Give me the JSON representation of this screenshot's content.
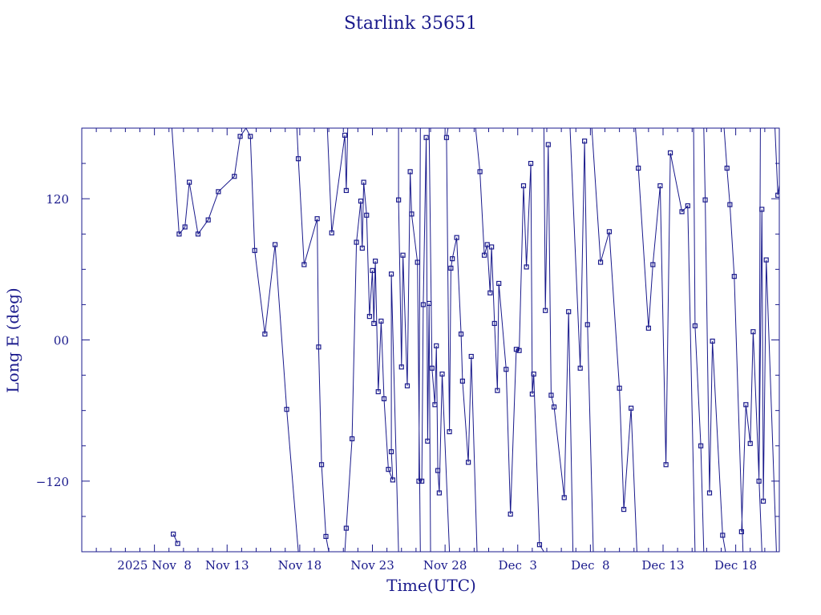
{
  "chart_data": {
    "type": "scatter",
    "title": "Starlink 35651",
    "xlabel": "Time(UTC)",
    "ylabel": "Long E (deg)",
    "x_start": "2025-11-02",
    "xlim_days": [
      0,
      48
    ],
    "ylim": [
      -180,
      180
    ],
    "y_ticks": [
      -120,
      0,
      120
    ],
    "y_tick_labels": [
      "−120",
      "00",
      "120"
    ],
    "x_ticks": [
      {
        "day": 5,
        "label": "2025 Nov  8"
      },
      {
        "day": 10,
        "label": "Nov 13"
      },
      {
        "day": 15,
        "label": "Nov 18"
      },
      {
        "day": 20,
        "label": "Nov 23"
      },
      {
        "day": 25,
        "label": "Nov 28"
      },
      {
        "day": 30,
        "label": "Dec  3"
      },
      {
        "day": 35,
        "label": "Dec  8"
      },
      {
        "day": 40,
        "label": "Dec 13"
      },
      {
        "day": 45,
        "label": "Dec 18"
      }
    ],
    "color": "#1a1a8c",
    "grid": false,
    "points": [
      [
        6.3,
        -165
      ],
      [
        6.6,
        -173
      ],
      [
        6.2,
        180
      ],
      [
        6.7,
        90
      ],
      [
        7.1,
        96
      ],
      [
        7.4,
        134
      ],
      [
        8.0,
        90
      ],
      [
        8.7,
        102
      ],
      [
        9.4,
        126
      ],
      [
        10.5,
        139
      ],
      [
        10.9,
        173
      ],
      [
        11.3,
        180
      ],
      [
        11.6,
        173
      ],
      [
        11.9,
        76
      ],
      [
        12.6,
        5
      ],
      [
        13.3,
        81
      ],
      [
        14.1,
        -59
      ],
      [
        14.9,
        -180
      ],
      [
        14.8,
        180
      ],
      [
        14.9,
        154
      ],
      [
        15.3,
        64
      ],
      [
        16.2,
        103
      ],
      [
        16.3,
        -6
      ],
      [
        16.5,
        -106
      ],
      [
        16.8,
        -167
      ],
      [
        17.0,
        -180
      ],
      [
        16.9,
        180
      ],
      [
        17.2,
        91
      ],
      [
        18.1,
        174
      ],
      [
        18.2,
        127
      ],
      [
        18.3,
        180
      ],
      [
        18.1,
        -180
      ],
      [
        18.2,
        -160
      ],
      [
        18.6,
        -84
      ],
      [
        18.9,
        83
      ],
      [
        19.2,
        118
      ],
      [
        19.3,
        78
      ],
      [
        19.4,
        134
      ],
      [
        19.6,
        106
      ],
      [
        19.8,
        20
      ],
      [
        20.0,
        59
      ],
      [
        20.1,
        14
      ],
      [
        20.2,
        67
      ],
      [
        20.4,
        -44
      ],
      [
        20.6,
        16
      ],
      [
        20.8,
        -50
      ],
      [
        21.1,
        -110
      ],
      [
        21.4,
        -119
      ],
      [
        21.3,
        -95
      ],
      [
        21.3,
        56
      ],
      [
        21.8,
        -180
      ],
      [
        21.8,
        180
      ],
      [
        21.8,
        119
      ],
      [
        22.0,
        -23
      ],
      [
        22.1,
        72
      ],
      [
        22.4,
        -39
      ],
      [
        22.6,
        143
      ],
      [
        22.7,
        107
      ],
      [
        23.1,
        66
      ],
      [
        23.3,
        -180
      ],
      [
        23.3,
        180
      ],
      [
        23.2,
        -120
      ],
      [
        23.4,
        -120
      ],
      [
        23.5,
        30
      ],
      [
        23.7,
        172
      ],
      [
        23.8,
        -86
      ],
      [
        23.9,
        31
      ],
      [
        24.0,
        -180
      ],
      [
        23.9,
        180
      ],
      [
        24.1,
        -24
      ],
      [
        24.3,
        -55
      ],
      [
        24.4,
        -5
      ],
      [
        24.5,
        -111
      ],
      [
        24.6,
        -130
      ],
      [
        24.8,
        -29
      ],
      [
        25.3,
        -180
      ],
      [
        25.2,
        180
      ],
      [
        25.1,
        172
      ],
      [
        25.3,
        -78
      ],
      [
        25.4,
        61
      ],
      [
        25.5,
        69
      ],
      [
        25.8,
        87
      ],
      [
        26.1,
        5
      ],
      [
        26.2,
        -35
      ],
      [
        26.6,
        -104
      ],
      [
        26.8,
        -14
      ],
      [
        27.2,
        -180
      ],
      [
        27.1,
        180
      ],
      [
        27.4,
        143
      ],
      [
        27.7,
        72
      ],
      [
        27.9,
        81
      ],
      [
        28.1,
        40
      ],
      [
        28.2,
        79
      ],
      [
        28.4,
        14
      ],
      [
        28.6,
        -43
      ],
      [
        28.7,
        48
      ],
      [
        29.2,
        -25
      ],
      [
        29.5,
        -148
      ],
      [
        29.9,
        -8
      ],
      [
        30.1,
        -9
      ],
      [
        30.4,
        131
      ],
      [
        30.6,
        62
      ],
      [
        30.9,
        150
      ],
      [
        31.0,
        -46
      ],
      [
        31.1,
        -29
      ],
      [
        31.5,
        -174
      ],
      [
        31.8,
        -180
      ],
      [
        31.8,
        180
      ],
      [
        31.9,
        25
      ],
      [
        32.1,
        166
      ],
      [
        32.3,
        -47
      ],
      [
        32.5,
        -57
      ],
      [
        33.2,
        -134
      ],
      [
        33.5,
        24
      ],
      [
        33.8,
        -180
      ],
      [
        33.6,
        180
      ],
      [
        34.3,
        -24
      ],
      [
        34.6,
        169
      ],
      [
        34.8,
        13
      ],
      [
        35.2,
        -180
      ],
      [
        35.1,
        180
      ],
      [
        35.7,
        66
      ],
      [
        36.3,
        92
      ],
      [
        37.0,
        -41
      ],
      [
        37.3,
        -144
      ],
      [
        37.8,
        -58
      ],
      [
        38.2,
        -180
      ],
      [
        38.1,
        180
      ],
      [
        38.3,
        146
      ],
      [
        39.0,
        10
      ],
      [
        39.3,
        64
      ],
      [
        39.8,
        131
      ],
      [
        40.2,
        -106
      ],
      [
        40.5,
        159
      ],
      [
        41.3,
        109
      ],
      [
        41.7,
        114
      ],
      [
        42.2,
        -180
      ],
      [
        42.1,
        180
      ],
      [
        42.2,
        12
      ],
      [
        42.6,
        -90
      ],
      [
        42.8,
        -180
      ],
      [
        42.8,
        180
      ],
      [
        42.9,
        119
      ],
      [
        43.2,
        -130
      ],
      [
        43.4,
        -1
      ],
      [
        44.1,
        -166
      ],
      [
        44.3,
        -180
      ],
      [
        44.2,
        180
      ],
      [
        44.4,
        146
      ],
      [
        44.6,
        115
      ],
      [
        44.9,
        54
      ],
      [
        45.5,
        -180
      ],
      [
        45.3,
        180
      ],
      [
        45.4,
        -163
      ],
      [
        45.7,
        -55
      ],
      [
        46.0,
        -88
      ],
      [
        46.2,
        7
      ],
      [
        46.8,
        -180
      ],
      [
        46.7,
        180
      ],
      [
        46.6,
        -120
      ],
      [
        46.8,
        111
      ],
      [
        46.9,
        -137
      ],
      [
        47.1,
        68
      ],
      [
        47.8,
        -180
      ],
      [
        47.7,
        180
      ],
      [
        47.9,
        123
      ],
      [
        48.3,
        158
      ],
      [
        48.8,
        162
      ],
      [
        49.4,
        40
      ],
      [
        49.7,
        -66
      ]
    ]
  }
}
